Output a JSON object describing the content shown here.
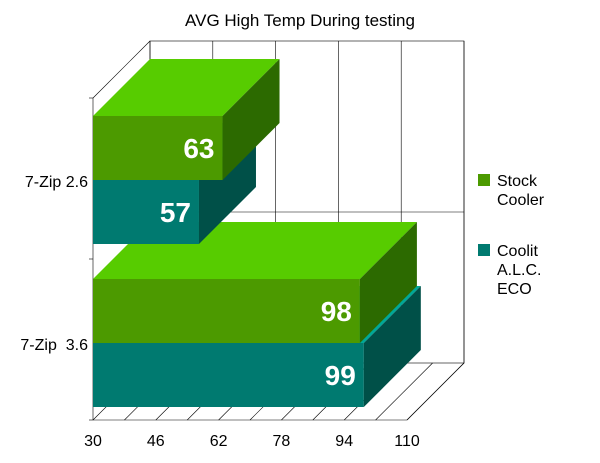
{
  "chart_data": {
    "type": "bar",
    "orientation": "horizontal",
    "three_d": true,
    "title": "AVG High Temp During testing",
    "categories": [
      "7-Zip 2.6",
      "7-Zip  3.6"
    ],
    "series": [
      {
        "name": "Stock Cooler",
        "legend_lines": [
          "Stock",
          "Cooler"
        ],
        "values": [
          63,
          98
        ],
        "color": "#4c9a00",
        "top_color": "#57cc00",
        "side_color": "#2c6a00"
      },
      {
        "name": "Coolit A.L.C. ECO",
        "legend_lines": [
          "Coolit",
          "A.L.C.",
          "ECO"
        ],
        "values": [
          57,
          99
        ],
        "color": "#007a70",
        "top_color": "#00a898",
        "side_color": "#005048"
      }
    ],
    "xlim": [
      30,
      110
    ],
    "xticks": [
      30,
      46,
      62,
      78,
      94,
      110
    ],
    "grid": true,
    "legend_position": "right"
  }
}
